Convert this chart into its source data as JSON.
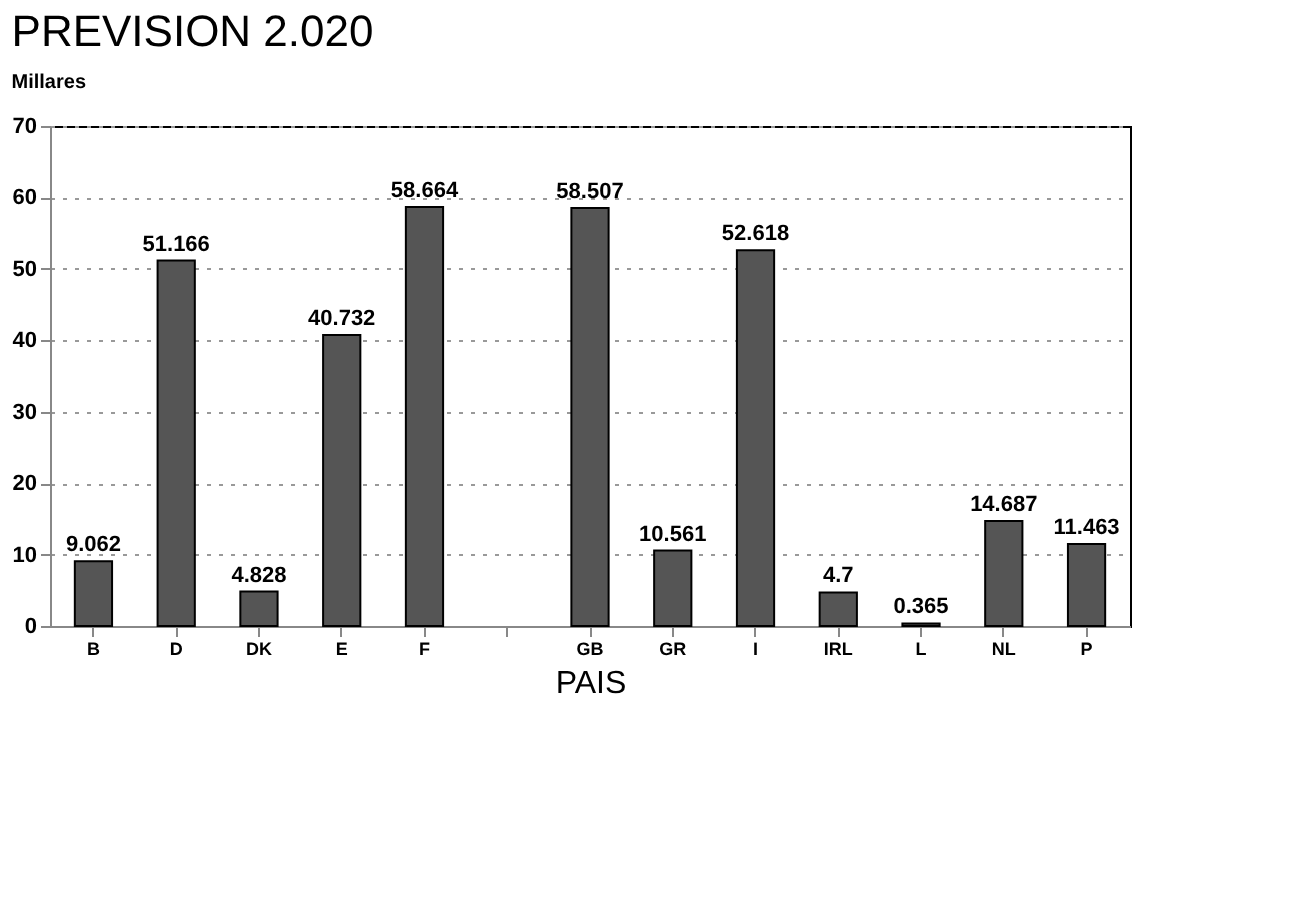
{
  "chart_data": {
    "type": "bar",
    "title": "PREVISION 2.020",
    "ylabel": "Millares",
    "xlabel": "PAIS",
    "categories": [
      "B",
      "D",
      "DK",
      "E",
      "F",
      null,
      "GB",
      "GR",
      "I",
      "IRL",
      "L",
      "NL",
      "P"
    ],
    "values": [
      9.062,
      51.166,
      4.828,
      40.732,
      58.664,
      null,
      58.507,
      10.561,
      52.618,
      4.7,
      0.365,
      14.687,
      11.463
    ],
    "color": "#555555",
    "data_labels": true,
    "ylim": [
      0,
      70
    ],
    "yticks": [
      0,
      10,
      20,
      30,
      40,
      50,
      60,
      70
    ],
    "grid": "y"
  }
}
